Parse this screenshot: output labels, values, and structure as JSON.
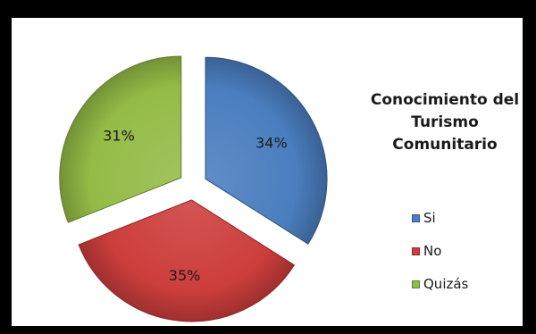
{
  "chart_data": {
    "type": "pie",
    "style": "exploded-3d",
    "title_lines": [
      "Conocimiento del",
      "Turismo",
      "Comunitario"
    ],
    "categories": [
      "Si",
      "No",
      "Quizás"
    ],
    "values": [
      34,
      35,
      31
    ],
    "data_labels": [
      "34%",
      "35%",
      "31%"
    ],
    "colors": [
      "#4a7ebf",
      "#cc3e3c",
      "#94bb46"
    ],
    "legend_position": "right"
  }
}
